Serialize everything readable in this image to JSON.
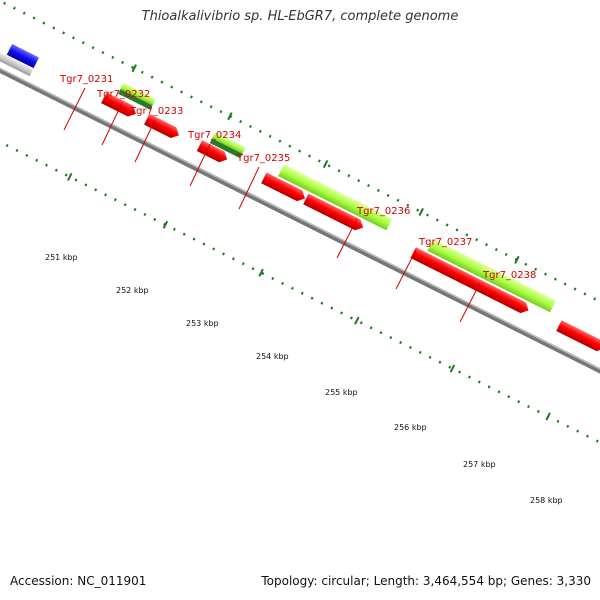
{
  "title": "Thioalkalivibrio sp. HL-EbGR7, complete genome",
  "footer": {
    "accession": "Accession: NC_011901",
    "topology": "Topology: circular; Length: 3,464,554 bp; Genes: 3,330"
  },
  "colors": {
    "cds": "#ff0000",
    "cds_dark": "#b00000",
    "gene_light": "#aaff44",
    "gene_dark": "#2a7a2a",
    "other": "#c8c8c8",
    "blue": "#1010ee",
    "backbone": "#777777",
    "label": "#d40000",
    "tick": "#1a7a1a"
  },
  "gene_labels": [
    "Tgr7_0231",
    "Tgr7_0232",
    "Tgr7_0233",
    "Tgr7_0234",
    "Tgr7_0235",
    "Tgr7_0236",
    "Tgr7_0237",
    "Tgr7_0238"
  ],
  "kbp_labels": [
    "251 kbp",
    "252 kbp",
    "253 kbp",
    "254 kbp",
    "255 kbp",
    "256 kbp",
    "257 kbp",
    "258 kbp"
  ]
}
